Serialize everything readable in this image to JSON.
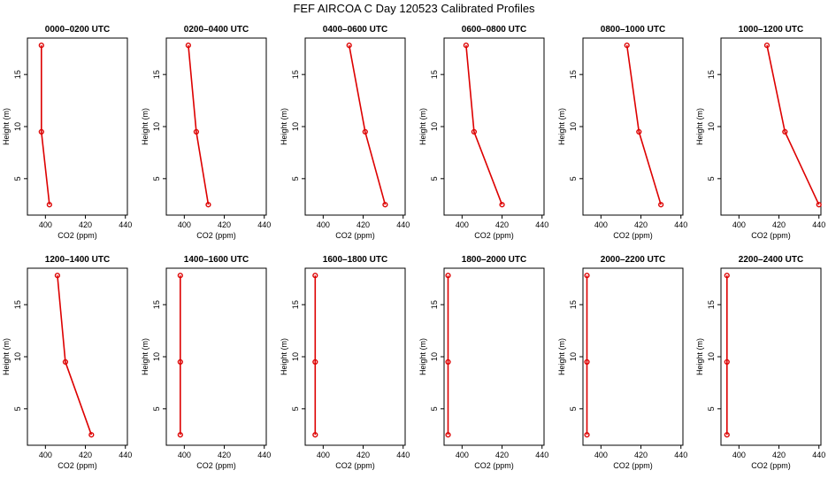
{
  "figure": {
    "title": "FEF AIRCOA C  Day 120523  Calibrated Profiles"
  },
  "chart_data": [
    {
      "type": "line",
      "title": "0000–0200 UTC",
      "xlabel": "CO2 (ppm)",
      "ylabel": "Height (m)",
      "xlim": [
        391,
        441
      ],
      "ylim": [
        1.5,
        18.5
      ],
      "xticks": [
        400,
        420,
        440
      ],
      "yticks": [
        5,
        10,
        15
      ],
      "x": [
        398,
        398,
        402
      ],
      "y": [
        17.8,
        9.5,
        2.5
      ]
    },
    {
      "type": "line",
      "title": "0200–0400 UTC",
      "xlabel": "CO2 (ppm)",
      "ylabel": "Height (m)",
      "xlim": [
        391,
        441
      ],
      "ylim": [
        1.5,
        18.5
      ],
      "xticks": [
        400,
        420,
        440
      ],
      "yticks": [
        5,
        10,
        15
      ],
      "x": [
        402,
        406,
        412
      ],
      "y": [
        17.8,
        9.5,
        2.5
      ]
    },
    {
      "type": "line",
      "title": "0400–0600 UTC",
      "xlabel": "CO2 (ppm)",
      "ylabel": "Height (m)",
      "xlim": [
        391,
        441
      ],
      "ylim": [
        1.5,
        18.5
      ],
      "xticks": [
        400,
        420,
        440
      ],
      "yticks": [
        5,
        10,
        15
      ],
      "x": [
        413,
        421,
        431
      ],
      "y": [
        17.8,
        9.5,
        2.5
      ]
    },
    {
      "type": "line",
      "title": "0600–0800 UTC",
      "xlabel": "CO2 (ppm)",
      "ylabel": "Height (m)",
      "xlim": [
        391,
        441
      ],
      "ylim": [
        1.5,
        18.5
      ],
      "xticks": [
        400,
        420,
        440
      ],
      "yticks": [
        5,
        10,
        15
      ],
      "x": [
        402,
        406,
        420
      ],
      "y": [
        17.8,
        9.5,
        2.5
      ]
    },
    {
      "type": "line",
      "title": "0800–1000 UTC",
      "xlabel": "CO2 (ppm)",
      "ylabel": "Height (m)",
      "xlim": [
        391,
        441
      ],
      "ylim": [
        1.5,
        18.5
      ],
      "xticks": [
        400,
        420,
        440
      ],
      "yticks": [
        5,
        10,
        15
      ],
      "x": [
        413,
        419,
        430
      ],
      "y": [
        17.8,
        9.5,
        2.5
      ]
    },
    {
      "type": "line",
      "title": "1000–1200 UTC",
      "xlabel": "CO2 (ppm)",
      "ylabel": "Height (m)",
      "xlim": [
        391,
        441
      ],
      "ylim": [
        1.5,
        18.5
      ],
      "xticks": [
        400,
        420,
        440
      ],
      "yticks": [
        5,
        10,
        15
      ],
      "x": [
        414,
        423,
        440
      ],
      "y": [
        17.8,
        9.5,
        2.5
      ]
    },
    {
      "type": "line",
      "title": "1200–1400 UTC",
      "xlabel": "CO2 (ppm)",
      "ylabel": "Height (m)",
      "xlim": [
        391,
        441
      ],
      "ylim": [
        1.5,
        18.5
      ],
      "xticks": [
        400,
        420,
        440
      ],
      "yticks": [
        5,
        10,
        15
      ],
      "x": [
        406,
        410,
        423
      ],
      "y": [
        17.8,
        9.5,
        2.5
      ]
    },
    {
      "type": "line",
      "title": "1400–1600 UTC",
      "xlabel": "CO2 (ppm)",
      "ylabel": "Height (m)",
      "xlim": [
        391,
        441
      ],
      "ylim": [
        1.5,
        18.5
      ],
      "xticks": [
        400,
        420,
        440
      ],
      "yticks": [
        5,
        10,
        15
      ],
      "x": [
        398,
        398,
        398
      ],
      "y": [
        17.8,
        9.5,
        2.5
      ]
    },
    {
      "type": "line",
      "title": "1600–1800 UTC",
      "xlabel": "CO2 (ppm)",
      "ylabel": "Height (m)",
      "xlim": [
        391,
        441
      ],
      "ylim": [
        1.5,
        18.5
      ],
      "xticks": [
        400,
        420,
        440
      ],
      "yticks": [
        5,
        10,
        15
      ],
      "x": [
        396,
        396,
        396
      ],
      "y": [
        17.8,
        9.5,
        2.5
      ]
    },
    {
      "type": "line",
      "title": "1800–2000 UTC",
      "xlabel": "CO2 (ppm)",
      "ylabel": "Height (m)",
      "xlim": [
        391,
        441
      ],
      "ylim": [
        1.5,
        18.5
      ],
      "xticks": [
        400,
        420,
        440
      ],
      "yticks": [
        5,
        10,
        15
      ],
      "x": [
        393,
        393,
        393
      ],
      "y": [
        17.8,
        9.5,
        2.5
      ]
    },
    {
      "type": "line",
      "title": "2000–2200 UTC",
      "xlabel": "CO2 (ppm)",
      "ylabel": "Height (m)",
      "xlim": [
        391,
        441
      ],
      "ylim": [
        1.5,
        18.5
      ],
      "xticks": [
        400,
        420,
        440
      ],
      "yticks": [
        5,
        10,
        15
      ],
      "x": [
        393,
        393,
        393
      ],
      "y": [
        17.8,
        9.5,
        2.5
      ]
    },
    {
      "type": "line",
      "title": "2200–2400 UTC",
      "xlabel": "CO2 (ppm)",
      "ylabel": "Height (m)",
      "xlim": [
        391,
        441
      ],
      "ylim": [
        1.5,
        18.5
      ],
      "xticks": [
        400,
        420,
        440
      ],
      "yticks": [
        5,
        10,
        15
      ],
      "x": [
        394,
        394,
        394
      ],
      "y": [
        17.8,
        9.5,
        2.5
      ]
    }
  ],
  "style": {
    "series_color": "#dd0000",
    "axis_color": "#000000",
    "background": "#ffffff"
  }
}
